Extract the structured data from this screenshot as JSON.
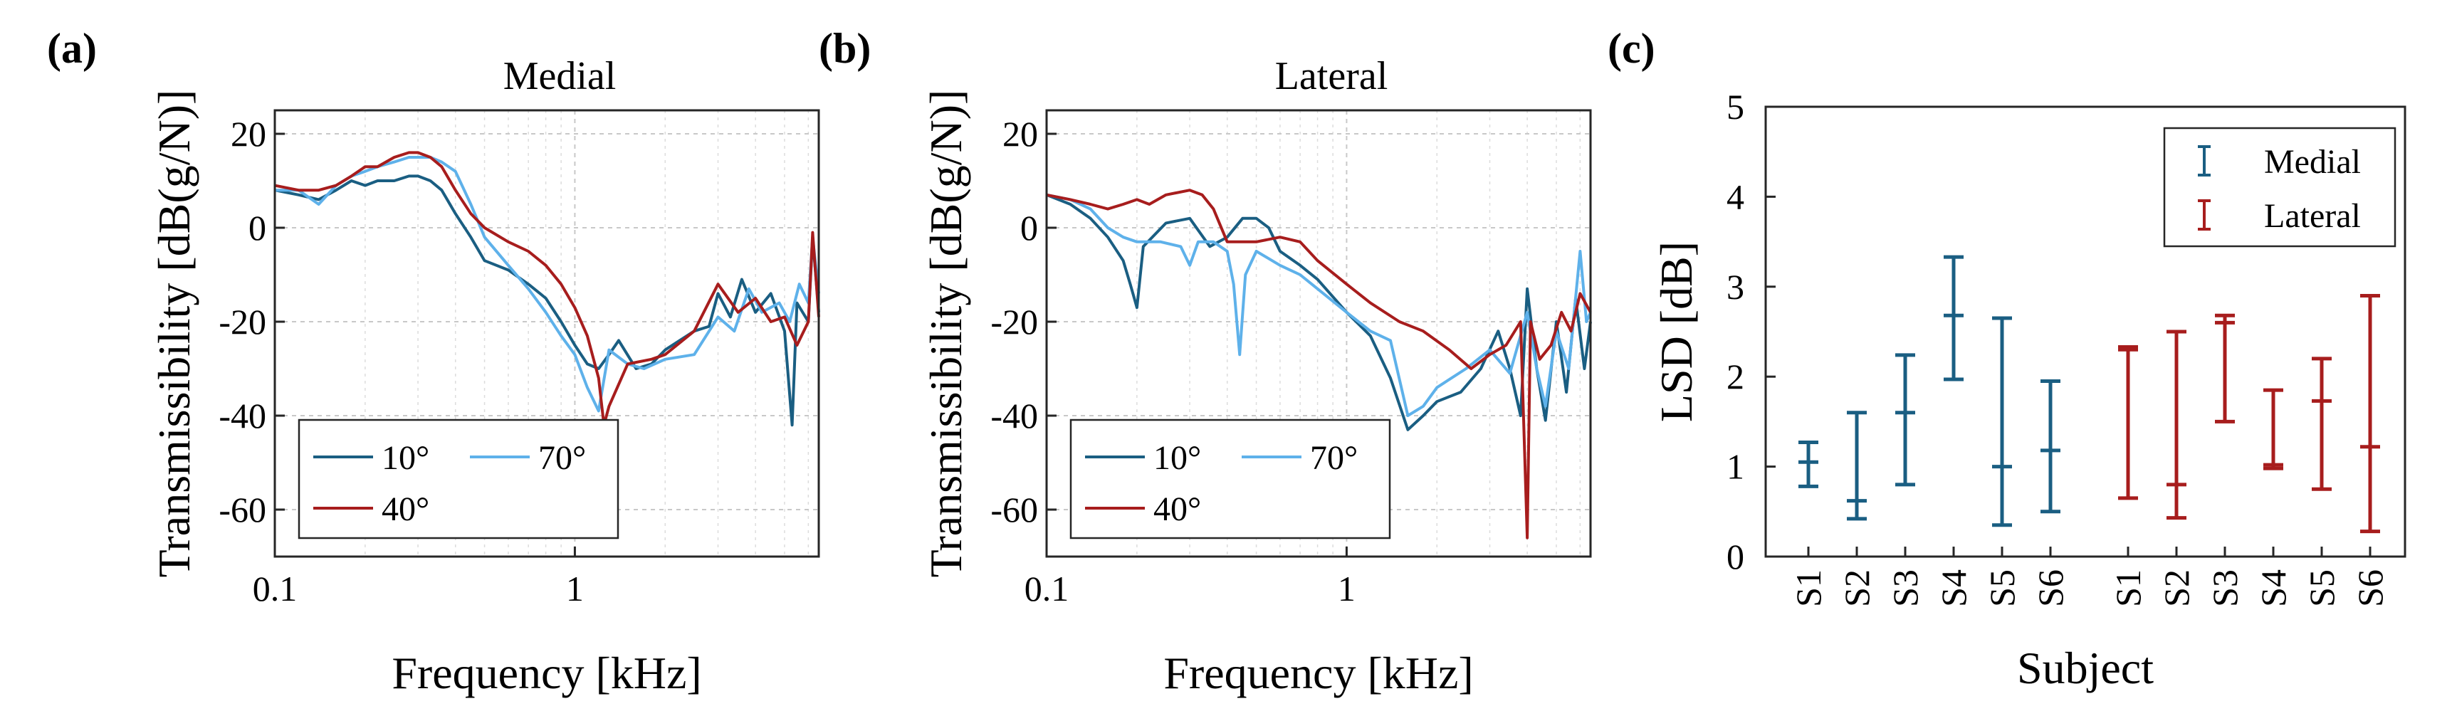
{
  "panels": {
    "a": {
      "label": "(a)",
      "title": "Medial"
    },
    "b": {
      "label": "(b)",
      "title": "Lateral"
    },
    "c": {
      "label": "(c)"
    }
  },
  "colors": {
    "c10": "#1a5e82",
    "c70": "#5eb1ea",
    "c40": "#a71d1d",
    "medial": "#1a5e82",
    "lateral": "#a71d1d"
  },
  "chart_data": [
    {
      "id": "a",
      "type": "line",
      "title": "Medial",
      "xlabel": "Frequency [kHz]",
      "ylabel": "Transmissibility [dB(g/N)]",
      "xscale": "log",
      "xlim": [
        0.1,
        6.5
      ],
      "ylim": [
        -70,
        25
      ],
      "xticks": [
        0.1,
        1
      ],
      "xtick_labels": [
        "0.1",
        "1"
      ],
      "yticks": [
        20,
        0,
        -20,
        -40,
        -60
      ],
      "ytick_labels": [
        "20",
        "0",
        "-20",
        "-40",
        "-60"
      ],
      "legend": {
        "position": "bottom-left",
        "entries": [
          "10°",
          "70°",
          "40°"
        ]
      },
      "series": [
        {
          "name": "10°",
          "color": "#1a5e82",
          "points": [
            [
              0.1,
              8
            ],
            [
              0.12,
              7
            ],
            [
              0.14,
              6
            ],
            [
              0.16,
              8
            ],
            [
              0.18,
              10
            ],
            [
              0.2,
              9
            ],
            [
              0.22,
              10
            ],
            [
              0.25,
              10
            ],
            [
              0.28,
              11
            ],
            [
              0.3,
              11
            ],
            [
              0.33,
              10
            ],
            [
              0.36,
              8
            ],
            [
              0.4,
              3
            ],
            [
              0.45,
              -2
            ],
            [
              0.5,
              -7
            ],
            [
              0.6,
              -9
            ],
            [
              0.7,
              -12
            ],
            [
              0.8,
              -15
            ],
            [
              0.9,
              -20
            ],
            [
              1.0,
              -25
            ],
            [
              1.1,
              -29
            ],
            [
              1.2,
              -30
            ],
            [
              1.3,
              -27
            ],
            [
              1.4,
              -24
            ],
            [
              1.6,
              -30
            ],
            [
              1.8,
              -29
            ],
            [
              2.0,
              -26
            ],
            [
              2.5,
              -22
            ],
            [
              2.8,
              -21
            ],
            [
              3.0,
              -14
            ],
            [
              3.3,
              -19
            ],
            [
              3.6,
              -11
            ],
            [
              4.0,
              -18
            ],
            [
              4.5,
              -14
            ],
            [
              5.0,
              -22
            ],
            [
              5.3,
              -42
            ],
            [
              5.5,
              -16
            ],
            [
              6.0,
              -20
            ],
            [
              6.2,
              -2
            ],
            [
              6.5,
              -18
            ]
          ]
        },
        {
          "name": "70°",
          "color": "#5eb1ea",
          "points": [
            [
              0.1,
              8
            ],
            [
              0.12,
              8
            ],
            [
              0.14,
              5
            ],
            [
              0.16,
              9
            ],
            [
              0.18,
              11
            ],
            [
              0.2,
              12
            ],
            [
              0.22,
              13
            ],
            [
              0.25,
              14
            ],
            [
              0.28,
              15
            ],
            [
              0.3,
              15
            ],
            [
              0.33,
              15
            ],
            [
              0.36,
              14
            ],
            [
              0.4,
              12
            ],
            [
              0.45,
              5
            ],
            [
              0.5,
              -2
            ],
            [
              0.6,
              -8
            ],
            [
              0.7,
              -13
            ],
            [
              0.8,
              -18
            ],
            [
              0.9,
              -23
            ],
            [
              1.0,
              -27
            ],
            [
              1.1,
              -34
            ],
            [
              1.2,
              -39
            ],
            [
              1.3,
              -26
            ],
            [
              1.5,
              -29
            ],
            [
              1.7,
              -30
            ],
            [
              2.0,
              -28
            ],
            [
              2.5,
              -27
            ],
            [
              3.0,
              -19
            ],
            [
              3.4,
              -22
            ],
            [
              3.8,
              -13
            ],
            [
              4.2,
              -18
            ],
            [
              4.8,
              -16
            ],
            [
              5.2,
              -20
            ],
            [
              5.6,
              -12
            ],
            [
              6.0,
              -16
            ],
            [
              6.2,
              -2
            ],
            [
              6.5,
              -14
            ]
          ]
        },
        {
          "name": "40°",
          "color": "#a71d1d",
          "points": [
            [
              0.1,
              9
            ],
            [
              0.12,
              8
            ],
            [
              0.14,
              8
            ],
            [
              0.16,
              9
            ],
            [
              0.18,
              11
            ],
            [
              0.2,
              13
            ],
            [
              0.22,
              13
            ],
            [
              0.25,
              15
            ],
            [
              0.28,
              16
            ],
            [
              0.3,
              16
            ],
            [
              0.33,
              15
            ],
            [
              0.36,
              13
            ],
            [
              0.4,
              8
            ],
            [
              0.45,
              3
            ],
            [
              0.5,
              0
            ],
            [
              0.6,
              -3
            ],
            [
              0.7,
              -5
            ],
            [
              0.8,
              -8
            ],
            [
              0.9,
              -12
            ],
            [
              1.0,
              -17
            ],
            [
              1.1,
              -23
            ],
            [
              1.2,
              -32
            ],
            [
              1.25,
              -42
            ],
            [
              1.3,
              -38
            ],
            [
              1.5,
              -29
            ],
            [
              1.8,
              -28
            ],
            [
              2.0,
              -27
            ],
            [
              2.5,
              -22
            ],
            [
              3.0,
              -12
            ],
            [
              3.5,
              -18
            ],
            [
              4.0,
              -15
            ],
            [
              4.5,
              -20
            ],
            [
              5.0,
              -19
            ],
            [
              5.5,
              -25
            ],
            [
              6.0,
              -20
            ],
            [
              6.2,
              -1
            ],
            [
              6.5,
              -19
            ]
          ]
        }
      ]
    },
    {
      "id": "b",
      "type": "line",
      "title": "Lateral",
      "xlabel": "Frequency [kHz]",
      "ylabel": "Transmissibility [dB(g/N)]",
      "xscale": "log",
      "xlim": [
        0.1,
        6.5
      ],
      "ylim": [
        -70,
        25
      ],
      "xticks": [
        0.1,
        1
      ],
      "xtick_labels": [
        "0.1",
        "1"
      ],
      "yticks": [
        20,
        0,
        -20,
        -40,
        -60
      ],
      "ytick_labels": [
        "20",
        "0",
        "-20",
        "-40",
        "-60"
      ],
      "legend": {
        "position": "bottom-left",
        "entries": [
          "10°",
          "70°",
          "40°"
        ]
      },
      "series": [
        {
          "name": "10°",
          "color": "#1a5e82",
          "points": [
            [
              0.1,
              7
            ],
            [
              0.12,
              5
            ],
            [
              0.14,
              2
            ],
            [
              0.16,
              -2
            ],
            [
              0.18,
              -7
            ],
            [
              0.19,
              -12
            ],
            [
              0.2,
              -17
            ],
            [
              0.21,
              -4
            ],
            [
              0.25,
              1
            ],
            [
              0.3,
              2
            ],
            [
              0.35,
              -4
            ],
            [
              0.4,
              -2
            ],
            [
              0.45,
              2
            ],
            [
              0.5,
              2
            ],
            [
              0.55,
              0
            ],
            [
              0.6,
              -5
            ],
            [
              0.7,
              -8
            ],
            [
              0.8,
              -11
            ],
            [
              1.0,
              -18
            ],
            [
              1.2,
              -23
            ],
            [
              1.4,
              -32
            ],
            [
              1.6,
              -43
            ],
            [
              1.8,
              -40
            ],
            [
              2.0,
              -37
            ],
            [
              2.4,
              -35
            ],
            [
              2.8,
              -30
            ],
            [
              3.2,
              -22
            ],
            [
              3.5,
              -30
            ],
            [
              3.8,
              -40
            ],
            [
              4.0,
              -13
            ],
            [
              4.3,
              -30
            ],
            [
              4.6,
              -41
            ],
            [
              5.0,
              -20
            ],
            [
              5.4,
              -35
            ],
            [
              5.8,
              -15
            ],
            [
              6.2,
              -30
            ],
            [
              6.5,
              -20
            ]
          ]
        },
        {
          "name": "70°",
          "color": "#5eb1ea",
          "points": [
            [
              0.1,
              7
            ],
            [
              0.12,
              6
            ],
            [
              0.14,
              4
            ],
            [
              0.16,
              0
            ],
            [
              0.18,
              -2
            ],
            [
              0.2,
              -3
            ],
            [
              0.24,
              -3
            ],
            [
              0.28,
              -4
            ],
            [
              0.3,
              -8
            ],
            [
              0.32,
              -3
            ],
            [
              0.36,
              -3
            ],
            [
              0.4,
              -5
            ],
            [
              0.42,
              -12
            ],
            [
              0.44,
              -27
            ],
            [
              0.46,
              -10
            ],
            [
              0.5,
              -5
            ],
            [
              0.6,
              -8
            ],
            [
              0.7,
              -10
            ],
            [
              0.8,
              -13
            ],
            [
              1.0,
              -18
            ],
            [
              1.2,
              -22
            ],
            [
              1.4,
              -24
            ],
            [
              1.6,
              -40
            ],
            [
              1.8,
              -38
            ],
            [
              2.0,
              -34
            ],
            [
              2.5,
              -30
            ],
            [
              3.0,
              -26
            ],
            [
              3.5,
              -31
            ],
            [
              4.0,
              -18
            ],
            [
              4.3,
              -30
            ],
            [
              4.6,
              -38
            ],
            [
              5.0,
              -22
            ],
            [
              5.5,
              -30
            ],
            [
              6.0,
              -5
            ],
            [
              6.3,
              -20
            ],
            [
              6.5,
              -18
            ]
          ]
        },
        {
          "name": "40°",
          "color": "#a71d1d",
          "points": [
            [
              0.1,
              7
            ],
            [
              0.12,
              6
            ],
            [
              0.14,
              5
            ],
            [
              0.16,
              4
            ],
            [
              0.18,
              5
            ],
            [
              0.2,
              6
            ],
            [
              0.22,
              5
            ],
            [
              0.25,
              7
            ],
            [
              0.3,
              8
            ],
            [
              0.33,
              7
            ],
            [
              0.36,
              4
            ],
            [
              0.4,
              -3
            ],
            [
              0.5,
              -3
            ],
            [
              0.6,
              -2
            ],
            [
              0.7,
              -3
            ],
            [
              0.8,
              -7
            ],
            [
              1.0,
              -12
            ],
            [
              1.2,
              -16
            ],
            [
              1.5,
              -20
            ],
            [
              1.8,
              -22
            ],
            [
              2.2,
              -26
            ],
            [
              2.6,
              -30
            ],
            [
              3.0,
              -27
            ],
            [
              3.4,
              -25
            ],
            [
              3.8,
              -20
            ],
            [
              4.0,
              -66
            ],
            [
              4.1,
              -20
            ],
            [
              4.4,
              -28
            ],
            [
              4.8,
              -25
            ],
            [
              5.2,
              -18
            ],
            [
              5.6,
              -22
            ],
            [
              6.0,
              -14
            ],
            [
              6.5,
              -18
            ]
          ]
        }
      ]
    },
    {
      "id": "c",
      "type": "errorbar",
      "xlabel": "Subject",
      "ylabel": "LSD [dB]",
      "ylim": [
        0,
        5
      ],
      "yticks": [
        0,
        1,
        2,
        3,
        4,
        5
      ],
      "ytick_labels": [
        "0",
        "1",
        "2",
        "3",
        "4",
        "5"
      ],
      "categories": [
        "S1",
        "S2",
        "S3",
        "S4",
        "S5",
        "S6",
        "S1",
        "S2",
        "S3",
        "S4",
        "S5",
        "S6"
      ],
      "legend": {
        "position": "top-right",
        "entries": [
          "Medial",
          "Lateral"
        ]
      },
      "series": [
        {
          "name": "Medial",
          "color": "#1a5e82",
          "mean": [
            1.05,
            0.62,
            1.6,
            2.68,
            1.0,
            1.18
          ],
          "low": [
            0.78,
            0.42,
            0.8,
            1.97,
            0.35,
            0.5
          ],
          "high": [
            1.27,
            1.6,
            2.24,
            3.33,
            2.65,
            1.95
          ]
        },
        {
          "name": "Lateral",
          "color": "#a71d1d",
          "mean": [
            2.3,
            0.8,
            2.6,
            1.02,
            1.73,
            1.22
          ],
          "low": [
            0.65,
            0.43,
            1.5,
            0.98,
            0.75,
            0.28
          ],
          "high": [
            2.33,
            2.5,
            2.68,
            1.85,
            2.2,
            2.9
          ]
        }
      ]
    }
  ]
}
